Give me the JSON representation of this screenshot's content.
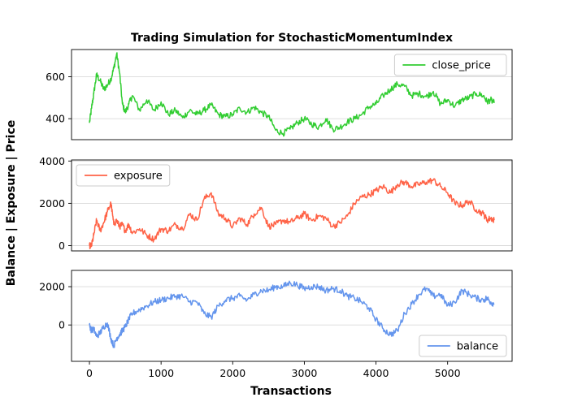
{
  "chart_data": {
    "type": "line",
    "title": "Trading Simulation for StochasticMomentumIndex",
    "xlabel": "Transactions",
    "ylabel": "Balance | Exposure | Price",
    "xlim": [
      -250,
      5900
    ],
    "x_ticks": [
      0,
      1000,
      2000,
      3000,
      4000,
      5000
    ],
    "grid": "horizontal",
    "panels": [
      {
        "name": "price",
        "ylim": [
          300,
          730
        ],
        "y_ticks": [
          400,
          600
        ],
        "legend_placement": "top-right",
        "series": [
          {
            "name": "close_price",
            "color": "#32cd32",
            "x": [
              0,
              30,
              60,
              100,
              150,
              200,
              250,
              300,
              340,
              380,
              420,
              460,
              500,
              550,
              600,
              700,
              800,
              900,
              1000,
              1100,
              1200,
              1300,
              1400,
              1500,
              1600,
              1700,
              1800,
              1900,
              2000,
              2100,
              2200,
              2300,
              2400,
              2500,
              2600,
              2700,
              2800,
              2900,
              3000,
              3100,
              3200,
              3300,
              3400,
              3500,
              3600,
              3700,
              3800,
              3900,
              4000,
              4100,
              4200,
              4300,
              4400,
              4500,
              4600,
              4700,
              4800,
              4900,
              5000,
              5100,
              5200,
              5300,
              5400,
              5500,
              5550,
              5600,
              5650
            ],
            "y": [
              380,
              450,
              520,
              610,
              580,
              540,
              560,
              590,
              640,
              710,
              620,
              470,
              430,
              470,
              510,
              440,
              490,
              440,
              480,
              420,
              440,
              405,
              440,
              420,
              440,
              465,
              420,
              410,
              420,
              450,
              430,
              455,
              430,
              410,
              345,
              330,
              350,
              380,
              400,
              375,
              360,
              400,
              350,
              360,
              385,
              400,
              420,
              455,
              470,
              510,
              540,
              565,
              555,
              510,
              520,
              505,
              530,
              470,
              490,
              460,
              490,
              500,
              520,
              510,
              480,
              490,
              475
            ]
          }
        ]
      },
      {
        "name": "exposure",
        "ylim": [
          -250,
          4050
        ],
        "y_ticks": [
          0,
          2000,
          4000
        ],
        "legend_placement": "top-left",
        "series": [
          {
            "name": "exposure",
            "color": "#ff6347",
            "x": [
              0,
              30,
              60,
              100,
              150,
              200,
              250,
              300,
              340,
              380,
              420,
              460,
              500,
              550,
              600,
              700,
              800,
              900,
              1000,
              1100,
              1200,
              1300,
              1400,
              1500,
              1600,
              1700,
              1800,
              1900,
              2000,
              2100,
              2200,
              2300,
              2400,
              2500,
              2600,
              2700,
              2800,
              2900,
              3000,
              3100,
              3200,
              3300,
              3400,
              3500,
              3600,
              3700,
              3800,
              3900,
              4000,
              4100,
              4200,
              4300,
              4400,
              4500,
              4600,
              4700,
              4800,
              4900,
              5000,
              5100,
              5200,
              5300,
              5400,
              5500,
              5550,
              5600,
              5650
            ],
            "y": [
              0,
              0,
              500,
              1200,
              700,
              1100,
              1600,
              2000,
              1000,
              1200,
              900,
              1000,
              700,
              1000,
              600,
              800,
              500,
              300,
              800,
              700,
              1000,
              800,
              1500,
              1200,
              2200,
              2500,
              1500,
              1300,
              900,
              1300,
              1000,
              1500,
              1800,
              900,
              1000,
              1200,
              1100,
              1300,
              1500,
              1200,
              1400,
              1300,
              900,
              1100,
              1400,
              2000,
              2300,
              2400,
              2600,
              2800,
              2500,
              2900,
              3000,
              2800,
              2900,
              3000,
              3100,
              2800,
              2500,
              2000,
              1900,
              2100,
              1700,
              1500,
              1200,
              1300,
              1200
            ]
          }
        ]
      },
      {
        "name": "balance",
        "ylim": [
          -1900,
          2850
        ],
        "y_ticks": [
          0,
          2000
        ],
        "legend_placement": "bottom-right",
        "series": [
          {
            "name": "balance",
            "color": "#6495ed",
            "x": [
              0,
              30,
              60,
              100,
              150,
              200,
              250,
              300,
              340,
              380,
              420,
              460,
              500,
              550,
              600,
              700,
              800,
              900,
              1000,
              1100,
              1200,
              1300,
              1400,
              1500,
              1600,
              1700,
              1800,
              1900,
              2000,
              2100,
              2200,
              2300,
              2400,
              2500,
              2600,
              2700,
              2800,
              2900,
              3000,
              3100,
              3200,
              3300,
              3400,
              3500,
              3600,
              3700,
              3800,
              3900,
              4000,
              4100,
              4200,
              4300,
              4400,
              4500,
              4600,
              4700,
              4800,
              4900,
              5000,
              5100,
              5200,
              5300,
              5400,
              5500,
              5550,
              5600,
              5650
            ],
            "y": [
              0,
              -300,
              -200,
              -600,
              -400,
              -100,
              100,
              -700,
              -1100,
              -700,
              -500,
              -300,
              -100,
              300,
              600,
              800,
              1000,
              1200,
              1300,
              1400,
              1500,
              1500,
              1200,
              1200,
              600,
              400,
              1000,
              1300,
              1400,
              1500,
              1300,
              1600,
              1800,
              1800,
              2000,
              2000,
              2200,
              2100,
              1900,
              2000,
              2000,
              1800,
              1900,
              1800,
              1500,
              1400,
              1200,
              900,
              300,
              -200,
              -500,
              -300,
              600,
              1100,
              1600,
              1900,
              1500,
              1600,
              1000,
              1200,
              1800,
              1600,
              1400,
              1300,
              1400,
              1200,
              1100
            ]
          }
        ]
      }
    ]
  }
}
